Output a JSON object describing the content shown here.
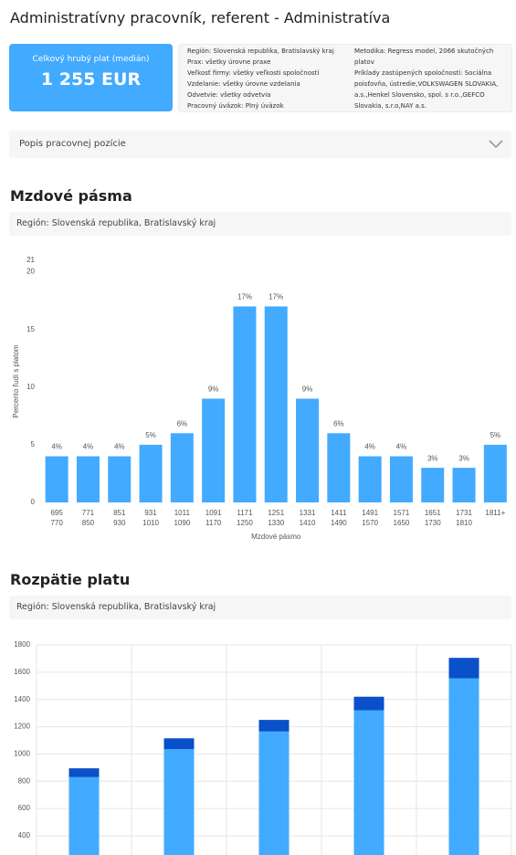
{
  "header": {
    "title": "Administratívny pracovník, referent - Administratíva"
  },
  "summary": {
    "label": "Celkový hrubý plat (medián)",
    "value": "1 255 EUR"
  },
  "details": {
    "left": [
      "Región: Slovenská republika, Bratislavský kraj",
      "Prax: všetky úrovne praxe",
      "Veľkosť firmy: všetky veľkosti spoločností",
      "Vzdelanie: všetky úrovne vzdelania",
      "Odvetvie: všetky odvetvia",
      "Pracovný úväzok: Plný úväzok"
    ],
    "right": [
      "Metodika: Regress model, 2066 skutočných platov",
      "Príklady zastúpených spoločností: Sociálna poisťovňa, ústredie,VOLKSWAGEN SLOVAKIA, a.s.,Henkel Slovensko, spol. s r.o.,GEFCO Slovakia, s.r.o,NAY a.s."
    ]
  },
  "accordion": {
    "label": "Popis pracovnej pozície"
  },
  "sections": [
    {
      "title": "Mzdové pásma",
      "region": "Región: Slovenská republika, Bratislavský kraj"
    },
    {
      "title": "Rozpätie platu",
      "region": "Región: Slovenská republika, Bratislavský kraj"
    }
  ],
  "chart_data": [
    {
      "type": "bar",
      "x_label": "Mzdové pásmo",
      "y_label": "Percento ľudí s platom",
      "categories": [
        [
          "695",
          "770"
        ],
        [
          "771",
          "850"
        ],
        [
          "851",
          "930"
        ],
        [
          "931",
          "1010"
        ],
        [
          "1011",
          "1090"
        ],
        [
          "1091",
          "1170"
        ],
        [
          "1171",
          "1250"
        ],
        [
          "1251",
          "1330"
        ],
        [
          "1331",
          "1410"
        ],
        [
          "1411",
          "1490"
        ],
        [
          "1491",
          "1570"
        ],
        [
          "1571",
          "1650"
        ],
        [
          "1651",
          "1730"
        ],
        [
          "1731",
          "1810"
        ],
        [
          "1811+"
        ]
      ],
      "values": [
        4,
        4,
        4,
        5,
        6,
        9,
        17,
        17,
        9,
        6,
        4,
        4,
        3,
        3,
        5
      ],
      "value_labels": [
        "4%",
        "4%",
        "4%",
        "5%",
        "6%",
        "9%",
        "17%",
        "17%",
        "9%",
        "6%",
        "4%",
        "4%",
        "3%",
        "3%",
        "5%"
      ],
      "color": "#42aaff",
      "ylim": [
        0,
        21
      ],
      "yticks": [
        0,
        5,
        10,
        15,
        20,
        21
      ],
      "grid": false
    },
    {
      "type": "stacked_bar",
      "categories": [
        null,
        null,
        null,
        null,
        null
      ],
      "series": [
        {
          "color": "#42aaff",
          "values": [
            830,
            1035,
            1165,
            1320,
            1555
          ]
        },
        {
          "color": "#0a50c8",
          "values": [
            65,
            80,
            85,
            100,
            150
          ]
        }
      ],
      "ylim": [
        0,
        1800
      ],
      "yticks": [
        400,
        600,
        800,
        1000,
        1200,
        1400,
        1600,
        1800
      ],
      "grid": true
    }
  ]
}
